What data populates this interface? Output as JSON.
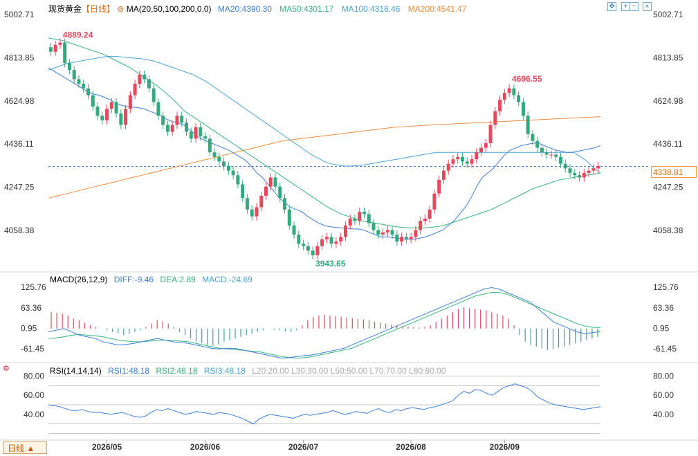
{
  "header": {
    "title": "现货黄金",
    "period_tag": "【日线】",
    "ma_label": "MA(20,50,100,200,0,0)",
    "ma20": "MA20:4390.30",
    "ma50": "MA50:4301.17",
    "ma100": "MA100:4316.46",
    "ma200": "MA200:4541.47"
  },
  "toolbar": {
    "icons": [
      "move-icon",
      "zoom-in-icon",
      "zoom-out-icon",
      "close-icon"
    ],
    "glyphs": [
      "✥",
      "+",
      "−",
      "×"
    ]
  },
  "period_button": {
    "label": "日线 ▲"
  },
  "colors": {
    "up": "#e9485c",
    "down": "#34a97d",
    "ma20": "#3d7fd6",
    "ma50": "#36b37e",
    "ma100": "#4aa3d6",
    "ma200": "#f08a3c",
    "rsi": "#3d7fd6",
    "dashed_price": "#2e6fcf"
  },
  "macd": {
    "label": "MACD(26,12,9)",
    "diff": "DIFF:-9.46",
    "dea": "DEA:2.89",
    "macd": "MACD:-24.69"
  },
  "rsi": {
    "label": "RSI(14,14,14)",
    "rsi1": "RSI1:48.18",
    "rsi2": "RSI2:48.18",
    "rsi3": "RSI3:48.18",
    "levels": "L20:20.00  L30:30.00  L50:50.00  L70:70.00  L80:80.00"
  },
  "chart_data": {
    "type": "candlestick",
    "last_price": "4338.81",
    "price_ticks": [
      "5002.71",
      "4813.85",
      "4624.98",
      "4436.11",
      "4247.25",
      "4058.38"
    ],
    "price_tick_values": [
      5002.71,
      4813.85,
      4624.98,
      4436.11,
      4247.25,
      4058.38
    ],
    "price_range": [
      3880,
      5030
    ],
    "annotations": {
      "high": {
        "value": "4889.24",
        "index": 2
      },
      "high2": {
        "value": "4696.55",
        "index": 98
      },
      "low": {
        "value": "3943.65",
        "index": 56
      }
    },
    "macd_ticks": [
      "125.76",
      "63.36",
      "0.95",
      "-61.45"
    ],
    "macd_tick_values": [
      125.76,
      63.36,
      0.95,
      -61.45
    ],
    "macd_range": [
      -95,
      145
    ],
    "rsi_ticks": [
      "80.00",
      "60.00",
      "40.00"
    ],
    "rsi_tick_values": [
      80,
      60,
      40
    ],
    "rsi_range": [
      16,
      84
    ],
    "rsi_lines": [
      80,
      70,
      50,
      30,
      20
    ],
    "x_labels": [
      {
        "label": "2026/05",
        "index": 12
      },
      {
        "label": "2026/06",
        "index": 33
      },
      {
        "label": "2026/07",
        "index": 54
      },
      {
        "label": "2026/08",
        "index": 77
      },
      {
        "label": "2026/09",
        "index": 97
      }
    ],
    "close": [
      4840,
      4870,
      4880,
      4790,
      4760,
      4720,
      4700,
      4680,
      4650,
      4600,
      4560,
      4540,
      4590,
      4620,
      4570,
      4520,
      4590,
      4650,
      4700,
      4740,
      4720,
      4680,
      4620,
      4560,
      4520,
      4490,
      4520,
      4560,
      4530,
      4490,
      4460,
      4510,
      4470,
      4460,
      4400,
      4380,
      4360,
      4340,
      4320,
      4300,
      4260,
      4200,
      4150,
      4120,
      4160,
      4210,
      4250,
      4290,
      4250,
      4200,
      4150,
      4080,
      4040,
      4000,
      3990,
      3970,
      3950,
      3990,
      4020,
      4030,
      4000,
      4010,
      4030,
      4080,
      4110,
      4100,
      4140,
      4130,
      4090,
      4060,
      4040,
      4050,
      4060,
      4040,
      4010,
      4030,
      4020,
      4030,
      4060,
      4100,
      4110,
      4150,
      4220,
      4280,
      4320,
      4350,
      4370,
      4380,
      4360,
      4350,
      4370,
      4400,
      4420,
      4440,
      4520,
      4580,
      4630,
      4660,
      4680,
      4650,
      4620,
      4560,
      4480,
      4450,
      4420,
      4400,
      4390,
      4390,
      4380,
      4350,
      4330,
      4310,
      4300,
      4290,
      4310,
      4320,
      4330,
      4340
    ],
    "ma20": [
      4770,
      4755,
      4740,
      4725,
      4710,
      4695,
      4680,
      4665,
      4655,
      4650,
      4640,
      4630,
      4615,
      4605,
      4600,
      4598,
      4595,
      4590,
      4580,
      4570,
      4560,
      4545,
      4535,
      4530,
      4520,
      4500,
      4480,
      4460,
      4450,
      4440,
      4430,
      4420,
      4410,
      4395,
      4380,
      4365,
      4340,
      4310,
      4290,
      4260,
      4230,
      4200,
      4180,
      4160,
      4150,
      4140,
      4120,
      4105,
      4090,
      4080,
      4075,
      4072,
      4070,
      4068,
      4065,
      4065,
      4060,
      4050,
      4040,
      4030,
      4030,
      4028,
      4025,
      4020,
      4020,
      4020,
      4025,
      4030,
      4040,
      4050,
      4060,
      4080,
      4100,
      4130,
      4160,
      4200,
      4250,
      4290,
      4310,
      4330,
      4360,
      4390,
      4410,
      4420,
      4430,
      4435,
      4440,
      4440,
      4430,
      4420,
      4410,
      4405,
      4400,
      4400,
      4405,
      4410,
      4415,
      4420,
      4430
    ],
    "ma50": [
      4900,
      4895,
      4890,
      4880,
      4870,
      4860,
      4850,
      4840,
      4830,
      4815,
      4800,
      4785,
      4770,
      4750,
      4730,
      4710,
      4690,
      4665,
      4640,
      4610,
      4580,
      4560,
      4540,
      4520,
      4500,
      4480,
      4460,
      4440,
      4420,
      4400,
      4380,
      4360,
      4340,
      4320,
      4300,
      4280,
      4260,
      4240,
      4220,
      4200,
      4180,
      4160,
      4145,
      4130,
      4120,
      4110,
      4100,
      4095,
      4090,
      4085,
      4080,
      4075,
      4072,
      4070,
      4070,
      4070,
      4072,
      4075,
      4080,
      4090,
      4100,
      4110,
      4120,
      4130,
      4140,
      4150,
      4165,
      4180,
      4195,
      4210,
      4225,
      4240,
      4250,
      4260,
      4270,
      4280,
      4285,
      4290,
      4295,
      4300,
      4305,
      4310
    ],
    "ma100": [
      4760,
      4770,
      4780,
      4790,
      4795,
      4800,
      4805,
      4810,
      4815,
      4820,
      4820,
      4818,
      4815,
      4812,
      4810,
      4805,
      4800,
      4790,
      4780,
      4770,
      4760,
      4750,
      4740,
      4725,
      4710,
      4690,
      4670,
      4650,
      4630,
      4610,
      4590,
      4570,
      4550,
      4530,
      4510,
      4490,
      4470,
      4450,
      4430,
      4410,
      4390,
      4375,
      4360,
      4350,
      4345,
      4340,
      4340,
      4342,
      4345,
      4350,
      4355,
      4360,
      4365,
      4370,
      4375,
      4380,
      4385,
      4390,
      4395,
      4400,
      4400,
      4400,
      4400,
      4400,
      4400,
      4400,
      4400,
      4400,
      4400,
      4400,
      4400,
      4400,
      4400,
      4400,
      4400,
      4400,
      4400,
      4400,
      4400,
      4400,
      4400,
      4380,
      4360,
      4330,
      4310
    ],
    "ma200": [
      4200,
      4210,
      4220,
      4230,
      4240,
      4250,
      4260,
      4270,
      4280,
      4290,
      4300,
      4310,
      4320,
      4330,
      4340,
      4350,
      4360,
      4370,
      4380,
      4390,
      4400,
      4410,
      4420,
      4430,
      4440,
      4450,
      4455,
      4460,
      4465,
      4470,
      4475,
      4480,
      4485,
      4490,
      4495,
      4500,
      4505,
      4510,
      4512,
      4515,
      4518,
      4520,
      4522,
      4524,
      4526,
      4528,
      4530,
      4532,
      4534,
      4536,
      4538,
      4540,
      4542,
      4544,
      4546,
      4548,
      4550,
      4552,
      4554,
      4556
    ],
    "macd_diff": [
      -10,
      -5,
      0,
      -10,
      -20,
      -25,
      -30,
      -40,
      -45,
      -50,
      -48,
      -45,
      -40,
      -35,
      -30,
      -35,
      -40,
      -42,
      -45,
      -50,
      -55,
      -60,
      -62,
      -60,
      -60,
      -65,
      -70,
      -75,
      -80,
      -85,
      -90,
      -88,
      -85,
      -82,
      -80,
      -75,
      -70,
      -65,
      -60,
      -50,
      -40,
      -30,
      -20,
      -10,
      0,
      10,
      20,
      30,
      40,
      50,
      60,
      70,
      80,
      90,
      100,
      110,
      120,
      125,
      120,
      110,
      100,
      90,
      80,
      60,
      40,
      20,
      10,
      0,
      -10,
      -15,
      -12,
      -9
    ],
    "macd_dea": [
      -30,
      -28,
      -25,
      -20,
      -18,
      -20,
      -22,
      -25,
      -30,
      -35,
      -38,
      -40,
      -40,
      -38,
      -36,
      -35,
      -36,
      -38,
      -40,
      -45,
      -50,
      -55,
      -60,
      -62,
      -64,
      -66,
      -68,
      -70,
      -75,
      -80,
      -85,
      -88,
      -90,
      -88,
      -85,
      -80,
      -75,
      -70,
      -65,
      -60,
      -50,
      -40,
      -30,
      -20,
      -10,
      0,
      10,
      20,
      30,
      40,
      50,
      60,
      70,
      80,
      90,
      100,
      105,
      110,
      110,
      105,
      95,
      85,
      75,
      65,
      55,
      45,
      35,
      25,
      15,
      8,
      4,
      3
    ],
    "macd_hist": [
      50,
      48,
      45,
      40,
      30,
      25,
      18,
      10,
      5,
      0,
      -5,
      -10,
      -15,
      -20,
      -15,
      -10,
      -5,
      5,
      15,
      25,
      22,
      15,
      5,
      -10,
      -20,
      -30,
      -40,
      -45,
      -50,
      -52,
      -48,
      -40,
      -35,
      -30,
      -25,
      -20,
      -15,
      -10,
      -5,
      0,
      -3,
      -5,
      -8,
      -10,
      -5,
      10,
      25,
      35,
      40,
      42,
      40,
      38,
      36,
      34,
      32,
      30,
      28,
      25,
      20,
      18,
      15,
      12,
      10,
      8,
      6,
      4,
      3,
      5,
      10,
      20,
      30,
      40,
      50,
      60,
      65,
      62,
      60,
      58,
      55,
      50,
      45,
      40,
      30,
      10,
      -20,
      -40,
      -50,
      -55,
      -60,
      -65,
      -62,
      -58,
      -55,
      -50,
      -45,
      -40,
      -35,
      -30,
      -25
    ],
    "rsi1": [
      50,
      49,
      48,
      46,
      44,
      44,
      45,
      43,
      42,
      42,
      41,
      40,
      41,
      42,
      40,
      38,
      37,
      38,
      42,
      45,
      44,
      46,
      44,
      42,
      40,
      41,
      43,
      42,
      41,
      40,
      42,
      41,
      40,
      38,
      36,
      33,
      30,
      35,
      38,
      40,
      39,
      38,
      37,
      36,
      38,
      40,
      39,
      40,
      41,
      42,
      44,
      42,
      40,
      41,
      43,
      42,
      41,
      44,
      46,
      43,
      42,
      45,
      44,
      46,
      47,
      46,
      45,
      47,
      48,
      50,
      52,
      54,
      60,
      64,
      62,
      66,
      65,
      62,
      60,
      64,
      68,
      70,
      72,
      70,
      68,
      64,
      58,
      55,
      52,
      50,
      49,
      48,
      47,
      46,
      45,
      46,
      47,
      48
    ]
  }
}
